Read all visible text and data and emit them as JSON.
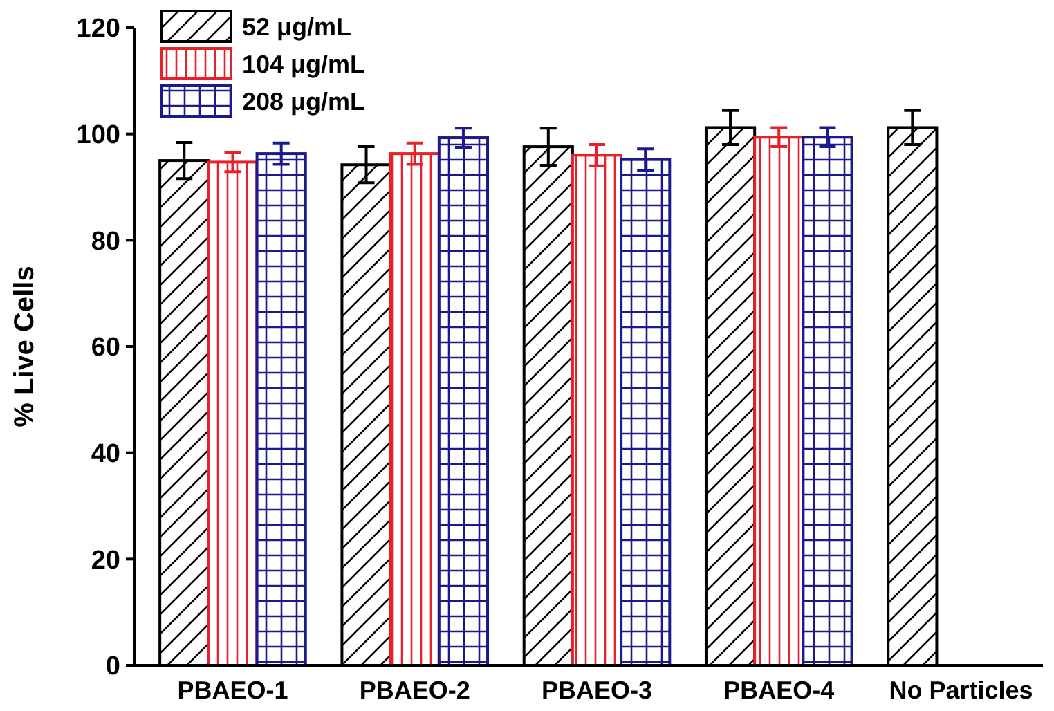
{
  "chart_data": {
    "type": "bar",
    "ylabel": "% Live Cells",
    "categories": [
      "PBAEO-1",
      "PBAEO-2",
      "PBAEO-3",
      "PBAEO-4",
      "No Particles"
    ],
    "series": [
      {
        "name": "52 μg/mL",
        "color": "#000000",
        "values": [
          95.0,
          94.2,
          97.6,
          101.2,
          101.2
        ],
        "errors": [
          3.4,
          3.4,
          3.5,
          3.2,
          3.2
        ]
      },
      {
        "name": "104 μg/mL",
        "color": "#e8202a",
        "values": [
          94.7,
          96.3,
          96.0,
          99.4,
          null
        ],
        "errors": [
          1.8,
          2.0,
          2.0,
          1.8,
          null
        ]
      },
      {
        "name": "208 μg/mL",
        "color": "#1a1a8c",
        "values": [
          96.3,
          99.3,
          95.2,
          99.4,
          null
        ],
        "errors": [
          2.0,
          1.8,
          2.0,
          1.8,
          null
        ]
      }
    ],
    "ylim": [
      0,
      120
    ],
    "yticks": [
      0,
      20,
      40,
      60,
      80,
      100,
      120
    ],
    "legend": "top left",
    "grid": false
  }
}
